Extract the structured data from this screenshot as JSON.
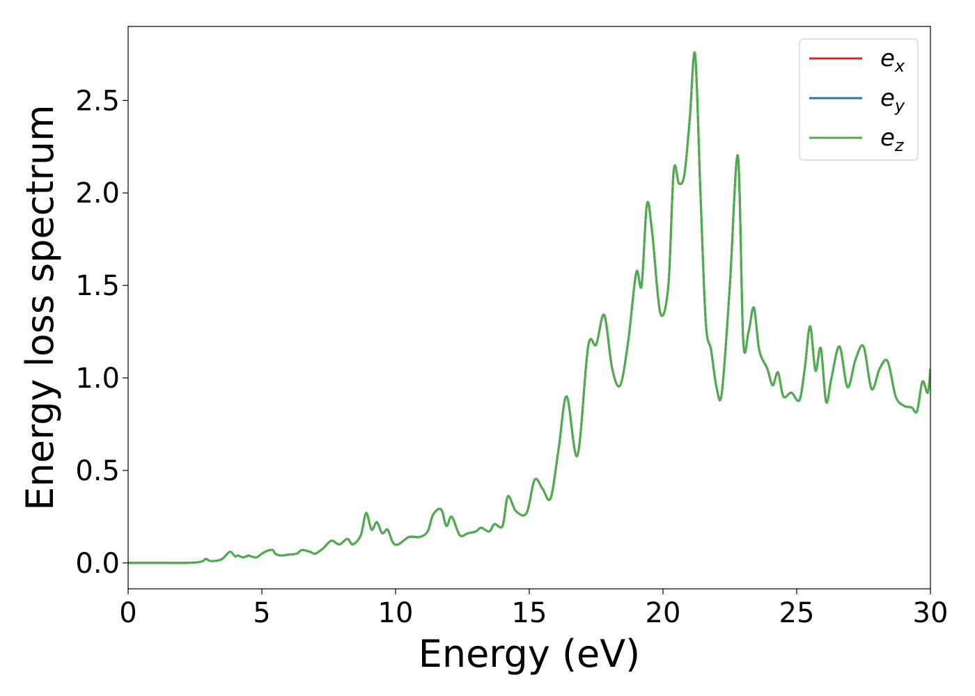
{
  "chart_data": {
    "type": "line",
    "title": "",
    "xlabel": "Energy (eV)",
    "ylabel": "Energy loss spectrum",
    "xlim": [
      0,
      30
    ],
    "ylim": [
      -0.14,
      2.9
    ],
    "xticks": [
      0,
      5,
      10,
      15,
      20,
      25,
      30
    ],
    "yticks": [
      0.0,
      0.5,
      1.0,
      1.5,
      2.0,
      2.5
    ],
    "xtick_labels": [
      "0",
      "5",
      "10",
      "15",
      "20",
      "25",
      "30"
    ],
    "ytick_labels": [
      "0.0",
      "0.5",
      "1.0",
      "1.5",
      "2.0",
      "2.5"
    ],
    "grid": false,
    "legend_position": "top-right",
    "x": [
      0,
      0.5,
      1,
      1.5,
      2,
      2.5,
      2.8,
      2.9,
      3.1,
      3.5,
      3.8,
      4.0,
      4.1,
      4.3,
      4.5,
      4.6,
      4.8,
      5.0,
      5.2,
      5.4,
      5.5,
      5.7,
      6.0,
      6.3,
      6.5,
      6.8,
      7.0,
      7.3,
      7.6,
      7.9,
      8.2,
      8.4,
      8.7,
      8.9,
      9.1,
      9.3,
      9.5,
      9.7,
      9.9,
      10.1,
      10.5,
      10.9,
      11.2,
      11.4,
      11.7,
      11.9,
      12.1,
      12.4,
      12.7,
      13.0,
      13.2,
      13.5,
      13.7,
      14.0,
      14.2,
      14.5,
      14.9,
      15.2,
      15.5,
      15.8,
      16.1,
      16.4,
      16.8,
      17.2,
      17.5,
      17.8,
      18.1,
      18.4,
      18.7,
      19.0,
      19.2,
      19.4,
      19.6,
      19.9,
      20.2,
      20.4,
      20.6,
      20.8,
      21.0,
      21.2,
      21.4,
      21.6,
      21.8,
      22.0,
      22.2,
      22.5,
      22.8,
      23.0,
      23.2,
      23.4,
      23.6,
      23.9,
      24.1,
      24.3,
      24.5,
      24.8,
      25.1,
      25.3,
      25.5,
      25.7,
      25.9,
      26.1,
      26.3,
      26.6,
      26.9,
      27.2,
      27.5,
      27.8,
      28.1,
      28.4,
      28.7,
      29.0,
      29.3,
      29.5,
      29.7,
      29.9,
      30
    ],
    "series": [
      {
        "name": "e_x",
        "legend_main": "e",
        "legend_sub": "x",
        "color": "#d62728",
        "y": [
          0.0,
          0.0,
          0.0,
          0.0,
          0.0,
          0.002,
          0.01,
          0.022,
          0.01,
          0.02,
          0.06,
          0.035,
          0.04,
          0.03,
          0.04,
          0.035,
          0.03,
          0.05,
          0.065,
          0.07,
          0.05,
          0.04,
          0.045,
          0.05,
          0.07,
          0.06,
          0.05,
          0.08,
          0.12,
          0.1,
          0.13,
          0.1,
          0.15,
          0.27,
          0.18,
          0.22,
          0.16,
          0.18,
          0.11,
          0.1,
          0.14,
          0.14,
          0.17,
          0.26,
          0.29,
          0.2,
          0.25,
          0.15,
          0.16,
          0.17,
          0.19,
          0.17,
          0.21,
          0.2,
          0.36,
          0.28,
          0.27,
          0.45,
          0.4,
          0.35,
          0.62,
          0.9,
          0.58,
          1.17,
          1.18,
          1.34,
          1.05,
          0.96,
          1.2,
          1.57,
          1.5,
          1.94,
          1.78,
          1.35,
          1.5,
          2.12,
          2.05,
          2.1,
          2.4,
          2.75,
          2.0,
          1.3,
          1.15,
          0.95,
          0.92,
          1.5,
          2.2,
          1.2,
          1.25,
          1.38,
          1.15,
          1.05,
          0.96,
          1.03,
          0.9,
          0.92,
          0.88,
          1.05,
          1.28,
          1.04,
          1.16,
          0.87,
          1.0,
          1.17,
          0.95,
          1.1,
          1.17,
          0.94,
          1.05,
          1.09,
          0.9,
          0.85,
          0.84,
          0.82,
          0.98,
          0.92,
          1.05
        ]
      },
      {
        "name": "e_y",
        "legend_main": "e",
        "legend_sub": "y",
        "color": "#1f77b4",
        "y": [
          0.0,
          0.0,
          0.0,
          0.0,
          0.0,
          0.002,
          0.01,
          0.022,
          0.01,
          0.02,
          0.06,
          0.035,
          0.04,
          0.03,
          0.04,
          0.035,
          0.03,
          0.05,
          0.065,
          0.07,
          0.05,
          0.04,
          0.045,
          0.05,
          0.07,
          0.06,
          0.05,
          0.08,
          0.12,
          0.1,
          0.13,
          0.1,
          0.15,
          0.27,
          0.18,
          0.22,
          0.16,
          0.18,
          0.11,
          0.1,
          0.14,
          0.14,
          0.17,
          0.26,
          0.29,
          0.2,
          0.25,
          0.15,
          0.16,
          0.17,
          0.19,
          0.17,
          0.21,
          0.2,
          0.36,
          0.28,
          0.27,
          0.45,
          0.4,
          0.35,
          0.62,
          0.9,
          0.58,
          1.17,
          1.18,
          1.34,
          1.05,
          0.96,
          1.2,
          1.57,
          1.5,
          1.94,
          1.78,
          1.35,
          1.5,
          2.12,
          2.05,
          2.1,
          2.4,
          2.75,
          2.0,
          1.3,
          1.15,
          0.95,
          0.92,
          1.5,
          2.2,
          1.2,
          1.25,
          1.38,
          1.15,
          1.05,
          0.96,
          1.03,
          0.9,
          0.92,
          0.88,
          1.05,
          1.28,
          1.04,
          1.16,
          0.87,
          1.0,
          1.17,
          0.95,
          1.1,
          1.17,
          0.94,
          1.05,
          1.09,
          0.9,
          0.85,
          0.84,
          0.82,
          0.98,
          0.92,
          1.05
        ]
      },
      {
        "name": "e_z",
        "legend_main": "e",
        "legend_sub": "z",
        "color": "#4daf4a",
        "y": [
          0.0,
          0.0,
          0.0,
          0.0,
          0.0,
          0.002,
          0.01,
          0.022,
          0.01,
          0.02,
          0.06,
          0.035,
          0.04,
          0.03,
          0.04,
          0.035,
          0.03,
          0.05,
          0.065,
          0.07,
          0.05,
          0.04,
          0.045,
          0.05,
          0.07,
          0.06,
          0.05,
          0.08,
          0.12,
          0.1,
          0.13,
          0.1,
          0.15,
          0.27,
          0.18,
          0.22,
          0.16,
          0.18,
          0.11,
          0.1,
          0.14,
          0.14,
          0.17,
          0.26,
          0.29,
          0.2,
          0.25,
          0.15,
          0.16,
          0.17,
          0.19,
          0.17,
          0.21,
          0.2,
          0.36,
          0.28,
          0.27,
          0.45,
          0.4,
          0.35,
          0.62,
          0.9,
          0.58,
          1.17,
          1.18,
          1.34,
          1.05,
          0.96,
          1.2,
          1.57,
          1.5,
          1.94,
          1.78,
          1.35,
          1.5,
          2.12,
          2.05,
          2.1,
          2.4,
          2.75,
          2.0,
          1.3,
          1.15,
          0.95,
          0.92,
          1.5,
          2.2,
          1.2,
          1.25,
          1.38,
          1.15,
          1.05,
          0.96,
          1.03,
          0.9,
          0.92,
          0.88,
          1.05,
          1.28,
          1.04,
          1.16,
          0.87,
          1.0,
          1.17,
          0.95,
          1.1,
          1.17,
          0.94,
          1.05,
          1.09,
          0.9,
          0.85,
          0.84,
          0.82,
          0.98,
          0.92,
          1.05
        ]
      }
    ]
  }
}
